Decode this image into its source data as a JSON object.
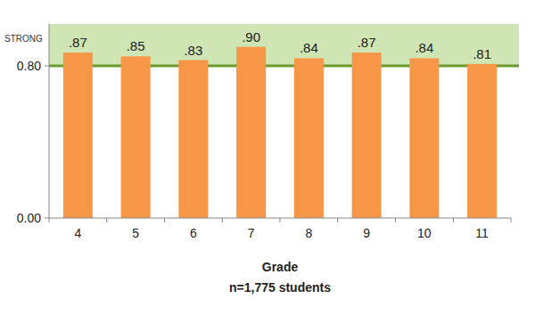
{
  "chart_data": {
    "type": "bar",
    "categories": [
      "4",
      "5",
      "6",
      "7",
      "8",
      "9",
      "10",
      "11"
    ],
    "values": [
      0.87,
      0.85,
      0.83,
      0.9,
      0.84,
      0.87,
      0.84,
      0.81
    ],
    "value_labels": [
      ".87",
      ".85",
      ".83",
      ".90",
      ".84",
      ".87",
      ".84",
      ".81"
    ],
    "data_labels": true,
    "color": "#f79646",
    "ylim": [
      0,
      1.02
    ],
    "yticks": [
      {
        "value": 0,
        "label": "0.00"
      },
      {
        "value": 0.8,
        "label": "0.80"
      }
    ],
    "grid": false,
    "threshold": {
      "label": "STRONG",
      "value": 0.8
    },
    "xlabel": "Grade",
    "note": "n=1,775 students"
  }
}
